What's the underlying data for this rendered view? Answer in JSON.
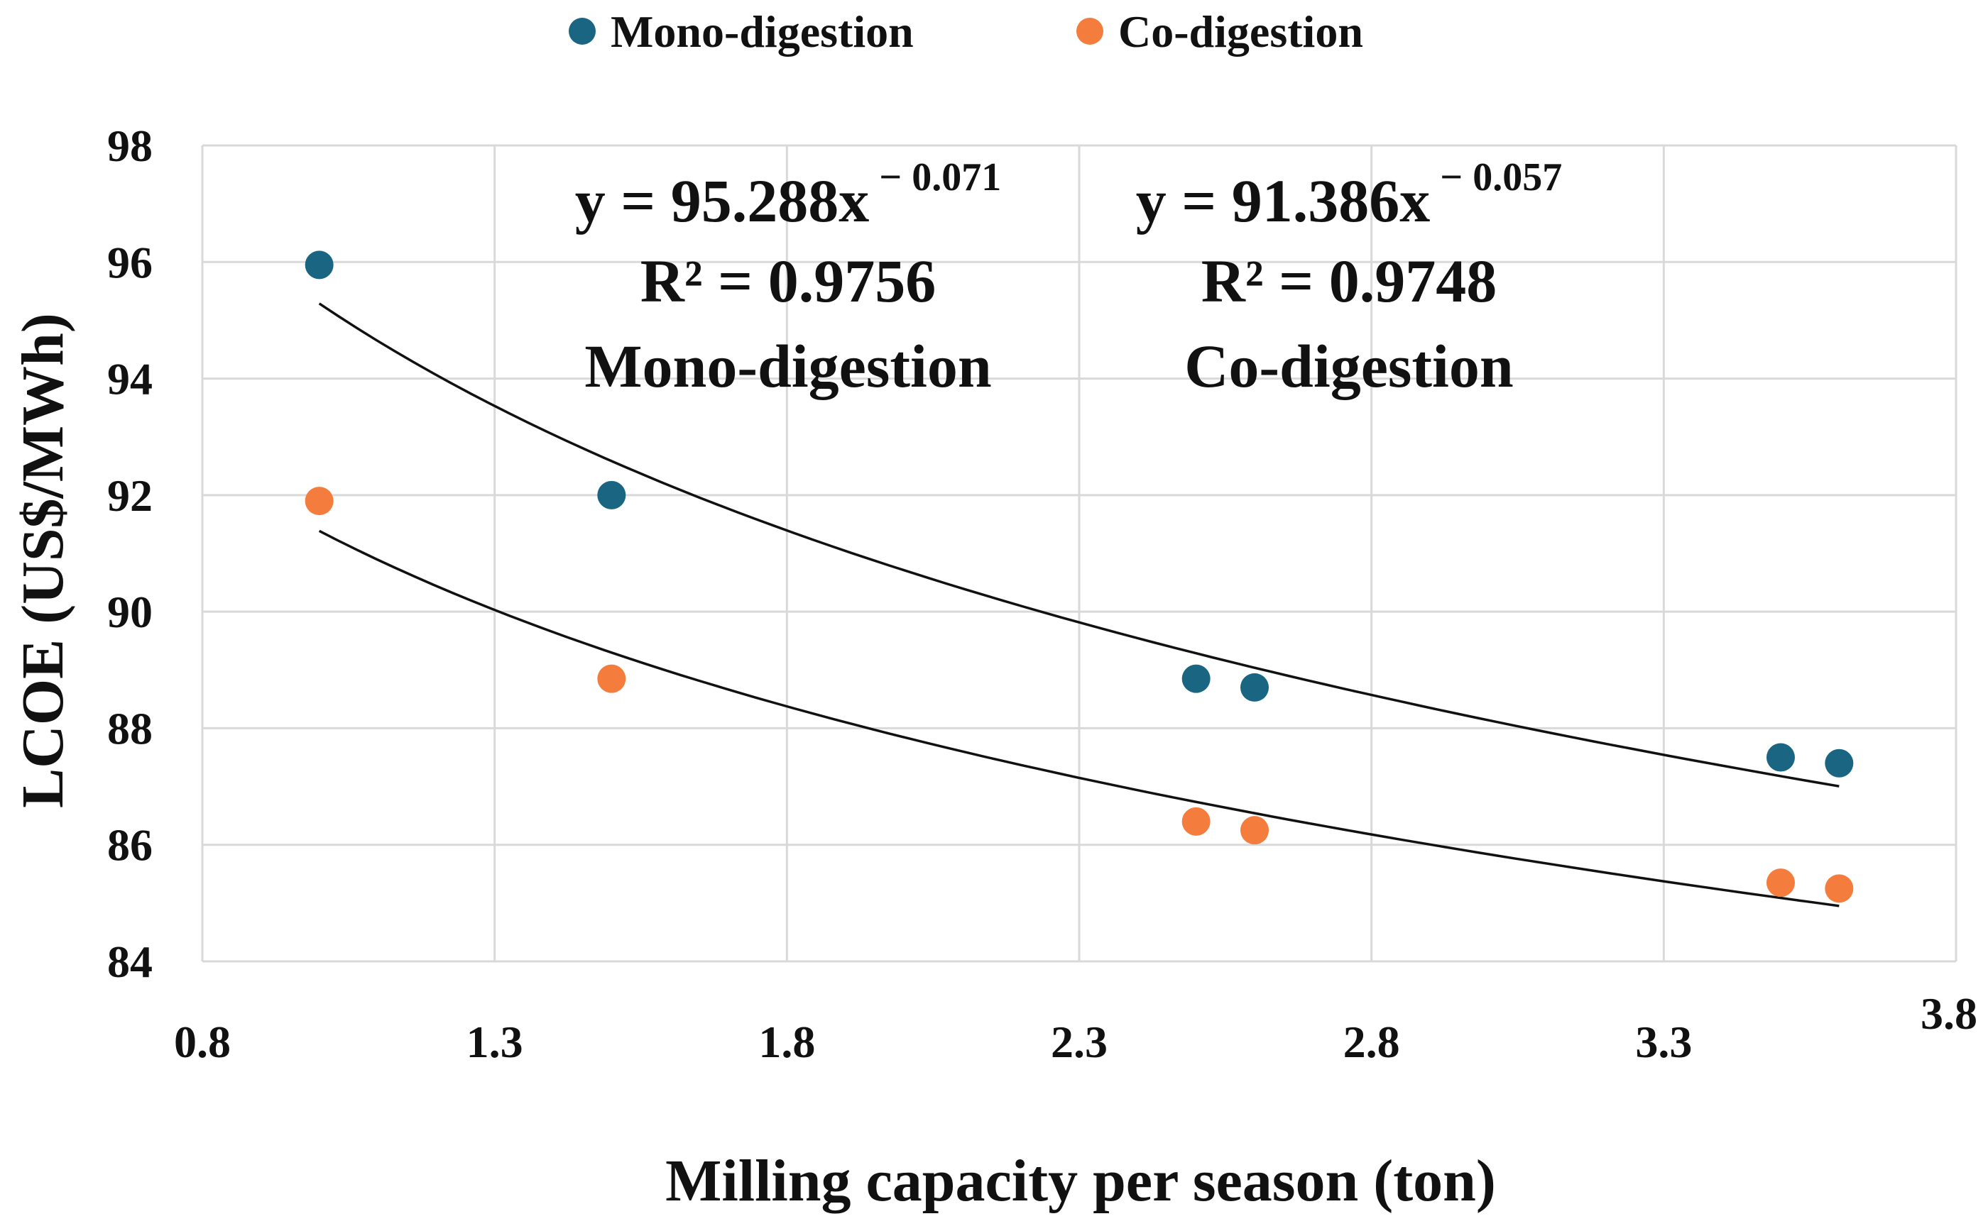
{
  "chart_data": {
    "type": "scatter",
    "title": "",
    "xlabel": "Milling capacity per season (ton)",
    "ylabel": "LCOE (US$/MWh)",
    "xlim": [
      0.8,
      3.8
    ],
    "ylim": [
      84,
      98
    ],
    "xticks": [
      0.8,
      1.3,
      1.8,
      2.3,
      2.8,
      3.3,
      3.8
    ],
    "xtick_labels": [
      "0.8",
      "1.3",
      "1.8",
      "2.3",
      "2.8",
      "3.3",
      "3.8"
    ],
    "yticks": [
      84,
      86,
      88,
      90,
      92,
      94,
      96,
      98
    ],
    "ytick_labels": [
      "84",
      "86",
      "88",
      "90",
      "92",
      "94",
      "96",
      "98"
    ],
    "grid": true,
    "legend_position": "top-center",
    "series": [
      {
        "name": "Mono-digestion",
        "color": "#1a6582",
        "x": [
          1.0,
          1.5,
          2.5,
          2.6,
          3.5,
          3.6
        ],
        "y": [
          95.95,
          92.0,
          88.85,
          88.7,
          87.5,
          87.4
        ],
        "trendline": {
          "type": "power",
          "a": 95.288,
          "b": -0.071,
          "x_range": [
            1.0,
            3.6
          ]
        },
        "annotation": {
          "equation_prefix": "y = 95.288x",
          "equation_exponent": " − 0.071",
          "r2": "R² = 0.9756",
          "label": "Mono-digestion"
        }
      },
      {
        "name": "Co-digestion",
        "color": "#f47c3c",
        "x": [
          1.0,
          1.5,
          2.5,
          2.6,
          3.5,
          3.6
        ],
        "y": [
          91.9,
          88.85,
          86.4,
          86.25,
          85.35,
          85.25
        ],
        "trendline": {
          "type": "power",
          "a": 91.386,
          "b": -0.057,
          "x_range": [
            1.0,
            3.6
          ]
        },
        "annotation": {
          "equation_prefix": "y = 91.386x",
          "equation_exponent": " − 0.057",
          "r2": "R² = 0.9748",
          "label": "Co-digestion"
        }
      }
    ],
    "colors": {
      "grid": "#d9d9d9",
      "trendline": "#111111",
      "text": "#111111"
    }
  }
}
